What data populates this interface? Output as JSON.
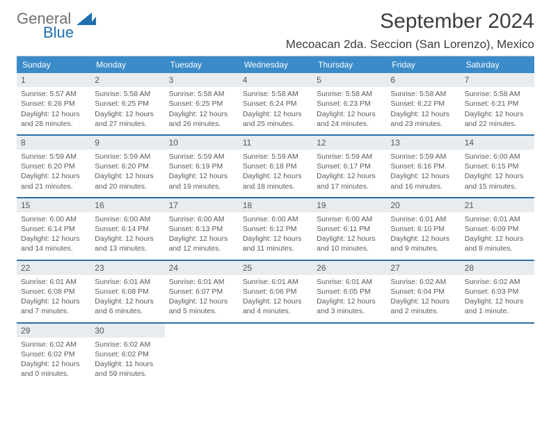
{
  "brand": {
    "word1": "General",
    "word2": "Blue"
  },
  "title": "September 2024",
  "location": "Mecoacan 2da. Seccion (San Lorenzo), Mexico",
  "colors": {
    "header_blue": "#3b8bc9",
    "divider": "#2b6ea3",
    "day_bg": "#e8ecef",
    "text": "#3d3d3d",
    "muted": "#5a5a5a",
    "background": "#ffffff",
    "logo_gray": "#6f6f6f",
    "logo_blue": "#1f6fb0"
  },
  "typography": {
    "title_fontsize": 30,
    "location_fontsize": 17,
    "dow_fontsize": 12,
    "cell_fontsize": 10.5,
    "font_family": "Arial"
  },
  "dow": [
    "Sunday",
    "Monday",
    "Tuesday",
    "Wednesday",
    "Thursday",
    "Friday",
    "Saturday"
  ],
  "calendar": {
    "type": "table",
    "weeks": [
      [
        {
          "day": "1",
          "sunrise": "Sunrise: 5:57 AM",
          "sunset": "Sunset: 6:26 PM",
          "d1": "Daylight: 12 hours",
          "d2": "and 28 minutes."
        },
        {
          "day": "2",
          "sunrise": "Sunrise: 5:58 AM",
          "sunset": "Sunset: 6:25 PM",
          "d1": "Daylight: 12 hours",
          "d2": "and 27 minutes."
        },
        {
          "day": "3",
          "sunrise": "Sunrise: 5:58 AM",
          "sunset": "Sunset: 6:25 PM",
          "d1": "Daylight: 12 hours",
          "d2": "and 26 minutes."
        },
        {
          "day": "4",
          "sunrise": "Sunrise: 5:58 AM",
          "sunset": "Sunset: 6:24 PM",
          "d1": "Daylight: 12 hours",
          "d2": "and 25 minutes."
        },
        {
          "day": "5",
          "sunrise": "Sunrise: 5:58 AM",
          "sunset": "Sunset: 6:23 PM",
          "d1": "Daylight: 12 hours",
          "d2": "and 24 minutes."
        },
        {
          "day": "6",
          "sunrise": "Sunrise: 5:58 AM",
          "sunset": "Sunset: 6:22 PM",
          "d1": "Daylight: 12 hours",
          "d2": "and 23 minutes."
        },
        {
          "day": "7",
          "sunrise": "Sunrise: 5:58 AM",
          "sunset": "Sunset: 6:21 PM",
          "d1": "Daylight: 12 hours",
          "d2": "and 22 minutes."
        }
      ],
      [
        {
          "day": "8",
          "sunrise": "Sunrise: 5:59 AM",
          "sunset": "Sunset: 6:20 PM",
          "d1": "Daylight: 12 hours",
          "d2": "and 21 minutes."
        },
        {
          "day": "9",
          "sunrise": "Sunrise: 5:59 AM",
          "sunset": "Sunset: 6:20 PM",
          "d1": "Daylight: 12 hours",
          "d2": "and 20 minutes."
        },
        {
          "day": "10",
          "sunrise": "Sunrise: 5:59 AM",
          "sunset": "Sunset: 6:19 PM",
          "d1": "Daylight: 12 hours",
          "d2": "and 19 minutes."
        },
        {
          "day": "11",
          "sunrise": "Sunrise: 5:59 AM",
          "sunset": "Sunset: 6:18 PM",
          "d1": "Daylight: 12 hours",
          "d2": "and 18 minutes."
        },
        {
          "day": "12",
          "sunrise": "Sunrise: 5:59 AM",
          "sunset": "Sunset: 6:17 PM",
          "d1": "Daylight: 12 hours",
          "d2": "and 17 minutes."
        },
        {
          "day": "13",
          "sunrise": "Sunrise: 5:59 AM",
          "sunset": "Sunset: 6:16 PM",
          "d1": "Daylight: 12 hours",
          "d2": "and 16 minutes."
        },
        {
          "day": "14",
          "sunrise": "Sunrise: 6:00 AM",
          "sunset": "Sunset: 6:15 PM",
          "d1": "Daylight: 12 hours",
          "d2": "and 15 minutes."
        }
      ],
      [
        {
          "day": "15",
          "sunrise": "Sunrise: 6:00 AM",
          "sunset": "Sunset: 6:14 PM",
          "d1": "Daylight: 12 hours",
          "d2": "and 14 minutes."
        },
        {
          "day": "16",
          "sunrise": "Sunrise: 6:00 AM",
          "sunset": "Sunset: 6:14 PM",
          "d1": "Daylight: 12 hours",
          "d2": "and 13 minutes."
        },
        {
          "day": "17",
          "sunrise": "Sunrise: 6:00 AM",
          "sunset": "Sunset: 6:13 PM",
          "d1": "Daylight: 12 hours",
          "d2": "and 12 minutes."
        },
        {
          "day": "18",
          "sunrise": "Sunrise: 6:00 AM",
          "sunset": "Sunset: 6:12 PM",
          "d1": "Daylight: 12 hours",
          "d2": "and 11 minutes."
        },
        {
          "day": "19",
          "sunrise": "Sunrise: 6:00 AM",
          "sunset": "Sunset: 6:11 PM",
          "d1": "Daylight: 12 hours",
          "d2": "and 10 minutes."
        },
        {
          "day": "20",
          "sunrise": "Sunrise: 6:01 AM",
          "sunset": "Sunset: 6:10 PM",
          "d1": "Daylight: 12 hours",
          "d2": "and 9 minutes."
        },
        {
          "day": "21",
          "sunrise": "Sunrise: 6:01 AM",
          "sunset": "Sunset: 6:09 PM",
          "d1": "Daylight: 12 hours",
          "d2": "and 8 minutes."
        }
      ],
      [
        {
          "day": "22",
          "sunrise": "Sunrise: 6:01 AM",
          "sunset": "Sunset: 6:08 PM",
          "d1": "Daylight: 12 hours",
          "d2": "and 7 minutes."
        },
        {
          "day": "23",
          "sunrise": "Sunrise: 6:01 AM",
          "sunset": "Sunset: 6:08 PM",
          "d1": "Daylight: 12 hours",
          "d2": "and 6 minutes."
        },
        {
          "day": "24",
          "sunrise": "Sunrise: 6:01 AM",
          "sunset": "Sunset: 6:07 PM",
          "d1": "Daylight: 12 hours",
          "d2": "and 5 minutes."
        },
        {
          "day": "25",
          "sunrise": "Sunrise: 6:01 AM",
          "sunset": "Sunset: 6:06 PM",
          "d1": "Daylight: 12 hours",
          "d2": "and 4 minutes."
        },
        {
          "day": "26",
          "sunrise": "Sunrise: 6:01 AM",
          "sunset": "Sunset: 6:05 PM",
          "d1": "Daylight: 12 hours",
          "d2": "and 3 minutes."
        },
        {
          "day": "27",
          "sunrise": "Sunrise: 6:02 AM",
          "sunset": "Sunset: 6:04 PM",
          "d1": "Daylight: 12 hours",
          "d2": "and 2 minutes."
        },
        {
          "day": "28",
          "sunrise": "Sunrise: 6:02 AM",
          "sunset": "Sunset: 6:03 PM",
          "d1": "Daylight: 12 hours",
          "d2": "and 1 minute."
        }
      ],
      [
        {
          "day": "29",
          "sunrise": "Sunrise: 6:02 AM",
          "sunset": "Sunset: 6:02 PM",
          "d1": "Daylight: 12 hours",
          "d2": "and 0 minutes."
        },
        {
          "day": "30",
          "sunrise": "Sunrise: 6:02 AM",
          "sunset": "Sunset: 6:02 PM",
          "d1": "Daylight: 11 hours",
          "d2": "and 59 minutes."
        },
        null,
        null,
        null,
        null,
        null
      ]
    ]
  }
}
